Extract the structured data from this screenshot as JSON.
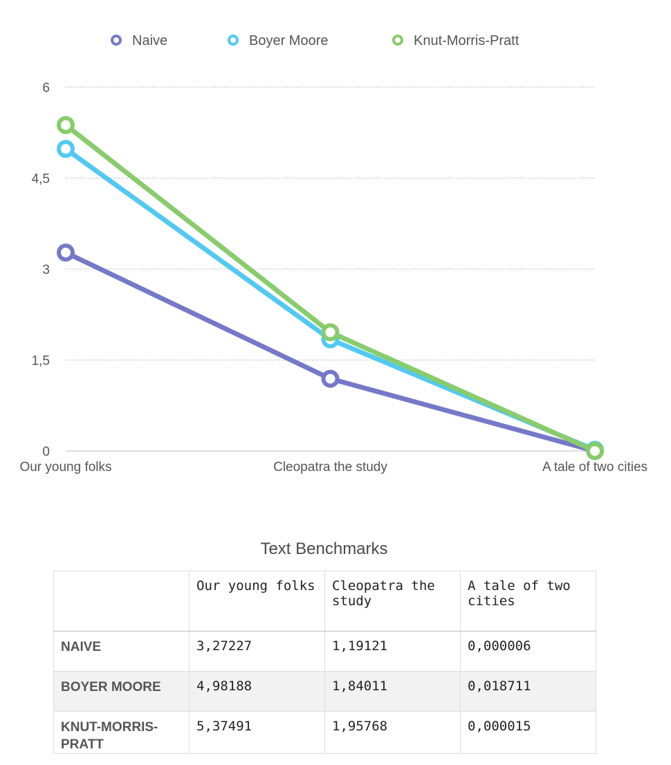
{
  "chart_data": {
    "type": "line",
    "categories": [
      "Our young folks",
      "Cleopatra the study",
      "A tale of two cities"
    ],
    "y_ticks": [
      "0",
      "1,5",
      "3",
      "4,5",
      "6"
    ],
    "ylim": [
      0,
      6
    ],
    "grid": true,
    "legend_position": "top",
    "series": [
      {
        "name": "Naive",
        "color": "#7479c9",
        "values": [
          3.27227,
          1.19121,
          6e-06
        ]
      },
      {
        "name": "Boyer Moore",
        "color": "#52c9f3",
        "values": [
          4.98188,
          1.84011,
          0.018711
        ]
      },
      {
        "name": "Knut-Morris-Pratt",
        "color": "#88cc6b",
        "values": [
          5.37491,
          1.95768,
          1.5e-05
        ]
      }
    ]
  },
  "table": {
    "title": "Text Benchmarks",
    "corner": "",
    "headers": [
      "Our young folks",
      "Cleopatra the study",
      "A tale of two cities"
    ],
    "rows": [
      {
        "label": "Naive",
        "cells": [
          "3,27227",
          "1,19121",
          "0,000006"
        ]
      },
      {
        "label": "Boyer Moore",
        "cells": [
          "4,98188",
          "1,84011",
          "0,018711"
        ]
      },
      {
        "label": "Knut-Morris-Pratt",
        "cells": [
          "5,37491",
          "1,95768",
          "0,000015"
        ]
      }
    ]
  }
}
